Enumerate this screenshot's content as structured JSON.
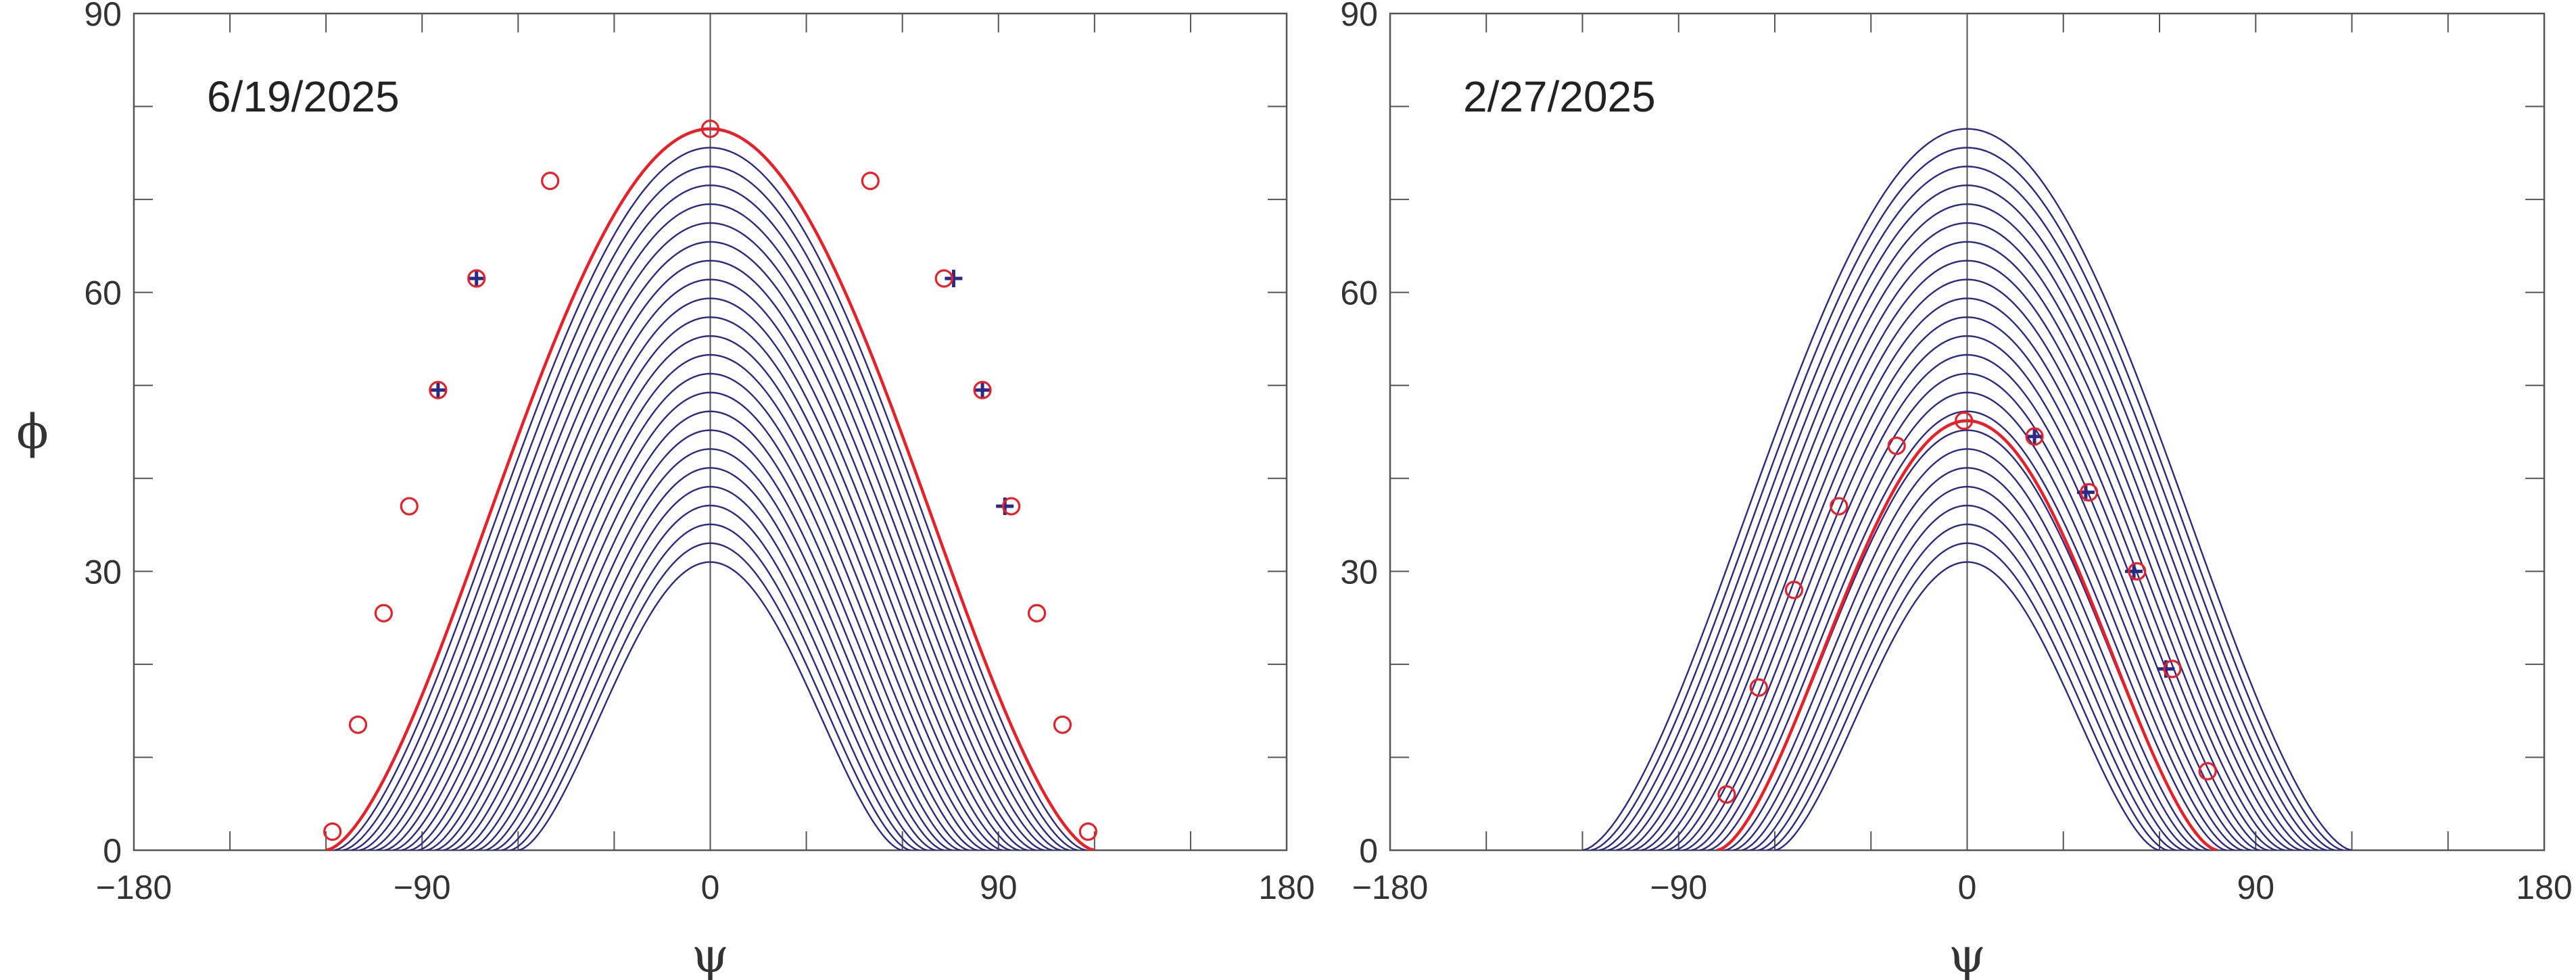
{
  "chart_data": [
    {
      "type": "line",
      "title": "6/19/2025",
      "xlabel": "ψ",
      "ylabel": "ϕ",
      "xlim": [
        -180,
        180
      ],
      "ylim": [
        0,
        90
      ],
      "xticks": [
        -180,
        -90,
        0,
        90,
        180
      ],
      "yticks": [
        0,
        30,
        60,
        90
      ],
      "xtick_labels": [
        "−180",
        "−90",
        "0",
        "90",
        "180"
      ],
      "ytick_labels": [
        "0",
        "30",
        "60",
        "90"
      ],
      "grid": false,
      "colors": {
        "family": "#2a2a85",
        "highlight": "#e8202a",
        "markers": "#e8202a",
        "plus": "#2a2a85"
      },
      "family_curves": {
        "count": 24,
        "peak_min": 31.0,
        "peak_max": 77.6,
        "base_halfwidth_min": 60,
        "base_halfwidth_max": 120
      },
      "highlight_curve": {
        "peak": 77.6,
        "base_halfwidth": 120
      },
      "circle_points": [
        {
          "x": -118,
          "y": 2
        },
        {
          "x": -110,
          "y": 13.5
        },
        {
          "x": -102,
          "y": 25.5
        },
        {
          "x": -94,
          "y": 37
        },
        {
          "x": -85,
          "y": 49.5
        },
        {
          "x": -73,
          "y": 61.5
        },
        {
          "x": -50,
          "y": 72
        },
        {
          "x": 0,
          "y": 77.6
        },
        {
          "x": 50,
          "y": 72
        },
        {
          "x": 73,
          "y": 61.5
        },
        {
          "x": 85,
          "y": 49.5
        },
        {
          "x": 94,
          "y": 37
        },
        {
          "x": 102,
          "y": 25.5
        },
        {
          "x": 110,
          "y": 13.5
        },
        {
          "x": 118,
          "y": 2
        }
      ],
      "plus_points": [
        {
          "x": -73,
          "y": 61.5
        },
        {
          "x": -85,
          "y": 49.5
        },
        {
          "x": 76,
          "y": 61.5
        },
        {
          "x": 85,
          "y": 49.5
        },
        {
          "x": 92,
          "y": 37
        }
      ]
    },
    {
      "type": "line",
      "title": "2/27/2025",
      "xlabel": "ψ",
      "ylabel": "",
      "xlim": [
        -180,
        180
      ],
      "ylim": [
        0,
        90
      ],
      "xticks": [
        -180,
        -90,
        0,
        90,
        180
      ],
      "yticks": [
        0,
        30,
        60,
        90
      ],
      "xtick_labels": [
        "−180",
        "−90",
        "0",
        "90",
        "180"
      ],
      "ytick_labels": [
        "0",
        "30",
        "60",
        "90"
      ],
      "grid": false,
      "colors": {
        "family": "#2a2a85",
        "highlight": "#e8202a",
        "markers": "#e8202a",
        "plus": "#2a2a85"
      },
      "family_curves": {
        "count": 24,
        "peak_min": 31.0,
        "peak_max": 77.6,
        "base_halfwidth_min": 60,
        "base_halfwidth_max": 120
      },
      "highlight_curve": {
        "peak": 46.2,
        "base_halfwidth": 78
      },
      "circle_points": [
        {
          "x": -75,
          "y": 6
        },
        {
          "x": -65,
          "y": 17.5
        },
        {
          "x": -54,
          "y": 28
        },
        {
          "x": -40,
          "y": 37
        },
        {
          "x": -22,
          "y": 43.5
        },
        {
          "x": -1,
          "y": 46.2
        },
        {
          "x": 21,
          "y": 44.5
        },
        {
          "x": 38,
          "y": 38.5
        },
        {
          "x": 53,
          "y": 30
        },
        {
          "x": 64,
          "y": 19.5
        },
        {
          "x": 75,
          "y": 8.5
        }
      ],
      "plus_points": [
        {
          "x": 21,
          "y": 44.5
        },
        {
          "x": 37,
          "y": 38.5
        },
        {
          "x": 52,
          "y": 30
        },
        {
          "x": 62,
          "y": 19.5
        }
      ]
    }
  ]
}
